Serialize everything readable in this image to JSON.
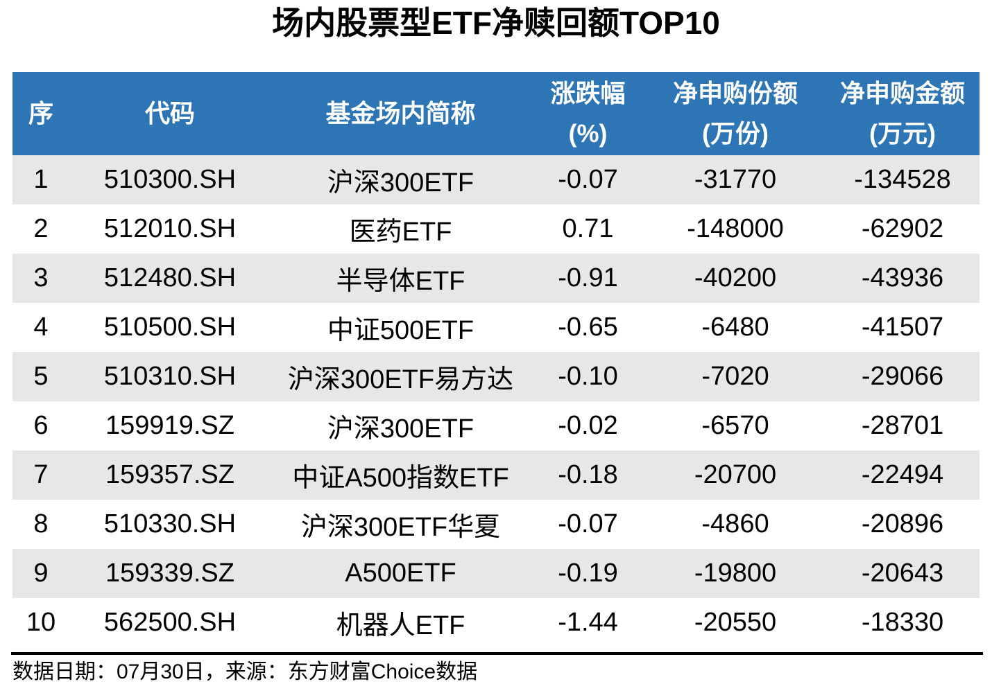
{
  "title": "场内股票型ETF净赎回额TOP10",
  "footer": "数据日期：07月30日，来源：东方财富Choice数据",
  "colors": {
    "header_bg": "#2E75B6",
    "header_text": "#FFFFFF",
    "row_alt_bg": "#E7E7E7",
    "row_bg": "#FFFFFF",
    "text": "#000000",
    "divider": "#000000"
  },
  "chart_data": {
    "type": "table",
    "title": "场内股票型ETF净赎回额TOP10",
    "columns": [
      "序",
      "代码",
      "基金场内简称",
      "涨跌幅\n(%)",
      "净申购份额\n(万份)",
      "净申购金额\n(万元)"
    ],
    "column_keys": [
      "rank",
      "code",
      "fund_short_name",
      "change_pct",
      "net_subscription_shares_wan",
      "net_subscription_amount_wan"
    ],
    "rows": [
      [
        "1",
        "510300.SH",
        "沪深300ETF",
        "-0.07",
        "-31770",
        "-134528"
      ],
      [
        "2",
        "512010.SH",
        "医药ETF",
        "0.71",
        "-148000",
        "-62902"
      ],
      [
        "3",
        "512480.SH",
        "半导体ETF",
        "-0.91",
        "-40200",
        "-43936"
      ],
      [
        "4",
        "510500.SH",
        "中证500ETF",
        "-0.65",
        "-6480",
        "-41507"
      ],
      [
        "5",
        "510310.SH",
        "沪深300ETF易方达",
        "-0.10",
        "-7020",
        "-29066"
      ],
      [
        "6",
        "159919.SZ",
        "沪深300ETF",
        "-0.02",
        "-6570",
        "-28701"
      ],
      [
        "7",
        "159357.SZ",
        "中证A500指数ETF",
        "-0.18",
        "-20700",
        "-22494"
      ],
      [
        "8",
        "510330.SH",
        "沪深300ETF华夏",
        "-0.07",
        "-4860",
        "-20896"
      ],
      [
        "9",
        "159339.SZ",
        "A500ETF",
        "-0.19",
        "-19800",
        "-20643"
      ],
      [
        "10",
        "562500.SH",
        "机器人ETF",
        "-1.44",
        "-20550",
        "-18330"
      ]
    ],
    "data_date": "07月30日",
    "source": "东方财富Choice数据"
  }
}
